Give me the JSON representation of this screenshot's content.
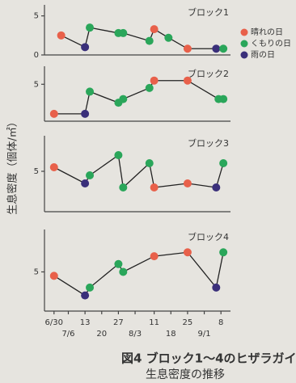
{
  "chart_data": {
    "type": "line",
    "title": "図4 ブロック1〜4のヒザラガイ",
    "subtitle": "生息密度の推移",
    "y_label": "生息密度（個体/㎡）",
    "legend": [
      {
        "name": "晴れの日",
        "color": "#e8604a"
      },
      {
        "name": "くもりの日",
        "color": "#2aa65a"
      },
      {
        "name": "雨の日",
        "color": "#3a2f7a"
      }
    ],
    "xlim": [
      -4,
      74
    ],
    "xticks": [
      {
        "value": 0,
        "label": "6/30"
      },
      {
        "value": 6,
        "label": "7/6"
      },
      {
        "value": 13,
        "label": "13"
      },
      {
        "value": 20,
        "label": "20"
      },
      {
        "value": 27,
        "label": "27"
      },
      {
        "value": 34,
        "label": "8/3"
      },
      {
        "value": 42,
        "label": "11"
      },
      {
        "value": 49,
        "label": "18"
      },
      {
        "value": 56,
        "label": "25"
      },
      {
        "value": 63,
        "label": "9/1"
      },
      {
        "value": 70,
        "label": "8"
      }
    ],
    "panels": [
      {
        "title": "ブロック1",
        "ylim": [
          0,
          6
        ],
        "yticks": [
          0,
          5
        ],
        "x": [
          3,
          13,
          15,
          27,
          29,
          40,
          42,
          48,
          56,
          68,
          71
        ],
        "values": [
          2.5,
          1,
          3.5,
          2.8,
          2.8,
          1.8,
          3.3,
          2.2,
          0.8,
          0.8,
          0.8
        ],
        "point_colors": [
          "#e8604a",
          "#3a2f7a",
          "#2aa65a",
          "#2aa65a",
          "#2aa65a",
          "#2aa65a",
          "#e8604a",
          "#2aa65a",
          "#e8604a",
          "#3a2f7a",
          "#2aa65a"
        ]
      },
      {
        "title": "ブロック2",
        "ylim": [
          0,
          7
        ],
        "yticks": [
          5
        ],
        "x": [
          0,
          13,
          15,
          27,
          29,
          40,
          42,
          56,
          69,
          71
        ],
        "values": [
          1,
          1,
          4,
          2.5,
          3,
          4.5,
          5.5,
          5.5,
          3,
          3
        ],
        "point_colors": [
          "#e8604a",
          "#3a2f7a",
          "#2aa65a",
          "#2aa65a",
          "#2aa65a",
          "#2aa65a",
          "#e8604a",
          "#e8604a",
          "#2aa65a",
          "#2aa65a"
        ]
      },
      {
        "title": "ブロック3",
        "ylim": [
          0,
          9
        ],
        "yticks": [
          5
        ],
        "x": [
          0,
          13,
          15,
          27,
          29,
          40,
          42,
          56,
          68,
          71
        ],
        "values": [
          5.5,
          3.5,
          4.5,
          7,
          3,
          6,
          3,
          3.5,
          3,
          6
        ],
        "point_colors": [
          "#e8604a",
          "#3a2f7a",
          "#2aa65a",
          "#2aa65a",
          "#2aa65a",
          "#2aa65a",
          "#e8604a",
          "#e8604a",
          "#3a2f7a",
          "#2aa65a"
        ]
      },
      {
        "title": "ブロック4",
        "ylim": [
          0,
          10
        ],
        "yticks": [
          5
        ],
        "x": [
          0,
          13,
          15,
          27,
          29,
          42,
          56,
          68,
          71
        ],
        "values": [
          4.5,
          2,
          3,
          6,
          5,
          7,
          7.5,
          3,
          7.5
        ],
        "point_colors": [
          "#e8604a",
          "#3a2f7a",
          "#2aa65a",
          "#2aa65a",
          "#2aa65a",
          "#e8604a",
          "#e8604a",
          "#3a2f7a",
          "#2aa65a"
        ]
      }
    ]
  }
}
